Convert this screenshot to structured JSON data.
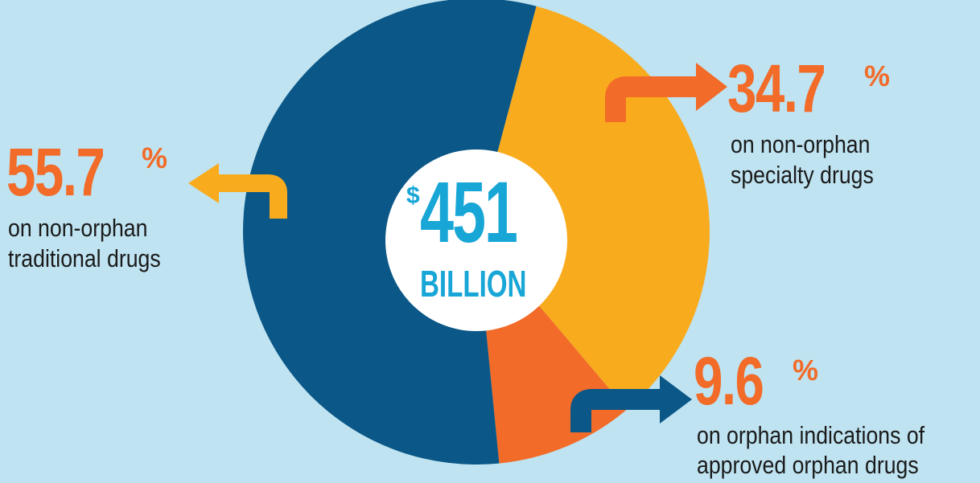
{
  "colors": {
    "background": "#bfe3f1",
    "traditional": "#0b5787",
    "specialty": "#f9ab1e",
    "orphan": "#f26b28",
    "center_text": "#17a6d6",
    "label_pct": "#f26b28"
  },
  "center": {
    "currency": "$",
    "amount": "451",
    "unit": "BILLION"
  },
  "chart_data": {
    "type": "pie",
    "title": "",
    "center_label": "$451 BILLION",
    "slices": [
      {
        "label": "on non-orphan traditional drugs",
        "value": 55.7,
        "display": "55.7",
        "color": "#0b5787"
      },
      {
        "label": "on non-orphan specialty drugs",
        "value": 34.7,
        "display": "34.7",
        "color": "#f9ab1e"
      },
      {
        "label": "on orphan indications of approved orphan drugs",
        "value": 9.6,
        "display": "9.6",
        "color": "#f26b28"
      }
    ]
  },
  "labels": {
    "traditional": {
      "pct": "55.7",
      "sign": "%",
      "line1": "on non-orphan",
      "line2": "traditional drugs"
    },
    "specialty": {
      "pct": "34.7",
      "sign": "%",
      "line1": "on non-orphan",
      "line2": "specialty drugs"
    },
    "orphan": {
      "pct": "9.6",
      "sign": "%",
      "line1": "on orphan indications of",
      "line2": "approved orphan drugs"
    }
  }
}
